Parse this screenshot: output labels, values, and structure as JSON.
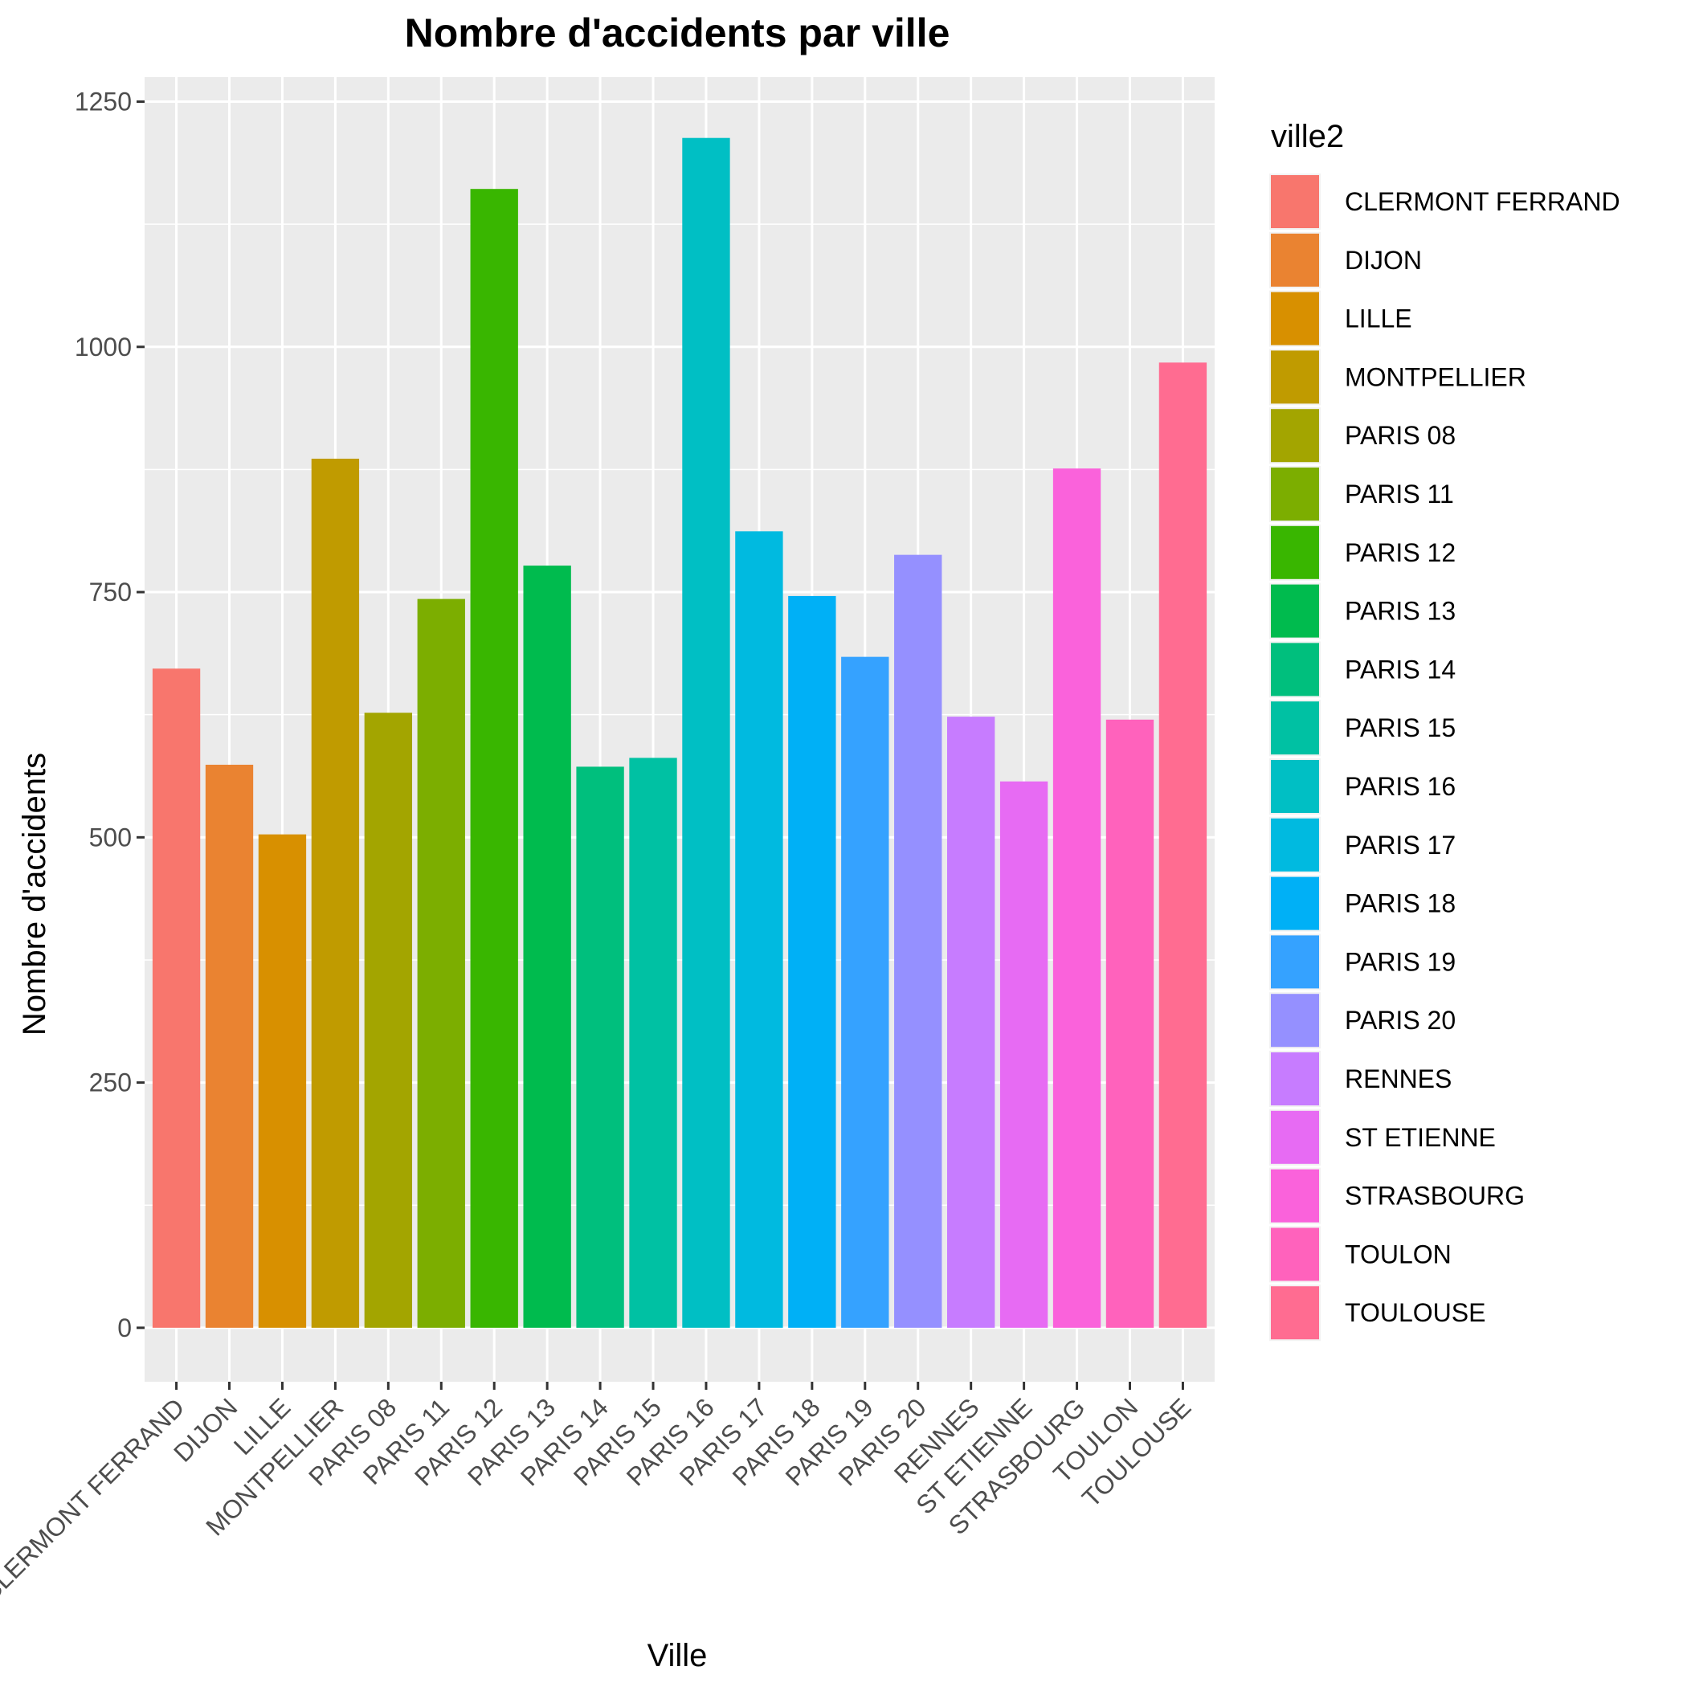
{
  "chart_data": {
    "type": "bar",
    "title": "Nombre d'accidents par ville",
    "xlabel": "Ville",
    "ylabel": "Nombre d'accidents",
    "categories": [
      "CLERMONT FERRAND",
      "DIJON",
      "LILLE",
      "MONTPELLIER",
      "PARIS 08",
      "PARIS 11",
      "PARIS 12",
      "PARIS 13",
      "PARIS 14",
      "PARIS 15",
      "PARIS 16",
      "PARIS 17",
      "PARIS 18",
      "PARIS 19",
      "PARIS 20",
      "RENNES",
      "ST ETIENNE",
      "STRASBOURG",
      "TOULON",
      "TOULOUSE"
    ],
    "values": [
      672,
      574,
      503,
      886,
      627,
      743,
      1161,
      777,
      572,
      581,
      1213,
      812,
      746,
      684,
      788,
      623,
      557,
      876,
      620,
      984
    ],
    "colors": [
      "#F8766D",
      "#EA8331",
      "#D89000",
      "#C09B00",
      "#A3A500",
      "#7CAE00",
      "#39B600",
      "#00BB4E",
      "#00BF7D",
      "#00C1A3",
      "#00BFC4",
      "#00BAE0",
      "#00B0F6",
      "#35A2FF",
      "#9590FF",
      "#C77CFF",
      "#E76BF3",
      "#FA62DB",
      "#FF62BC",
      "#FF6C91"
    ],
    "ylim": [
      -55,
      1275
    ],
    "yticks": [
      0,
      250,
      500,
      750,
      1000,
      1250
    ],
    "ytick_labels": [
      "0",
      "250",
      "500",
      "750",
      "1000",
      "1250"
    ],
    "legend": {
      "title": "ville2",
      "position": "right"
    },
    "grid": true,
    "panel_background": "#EBEBEB"
  }
}
